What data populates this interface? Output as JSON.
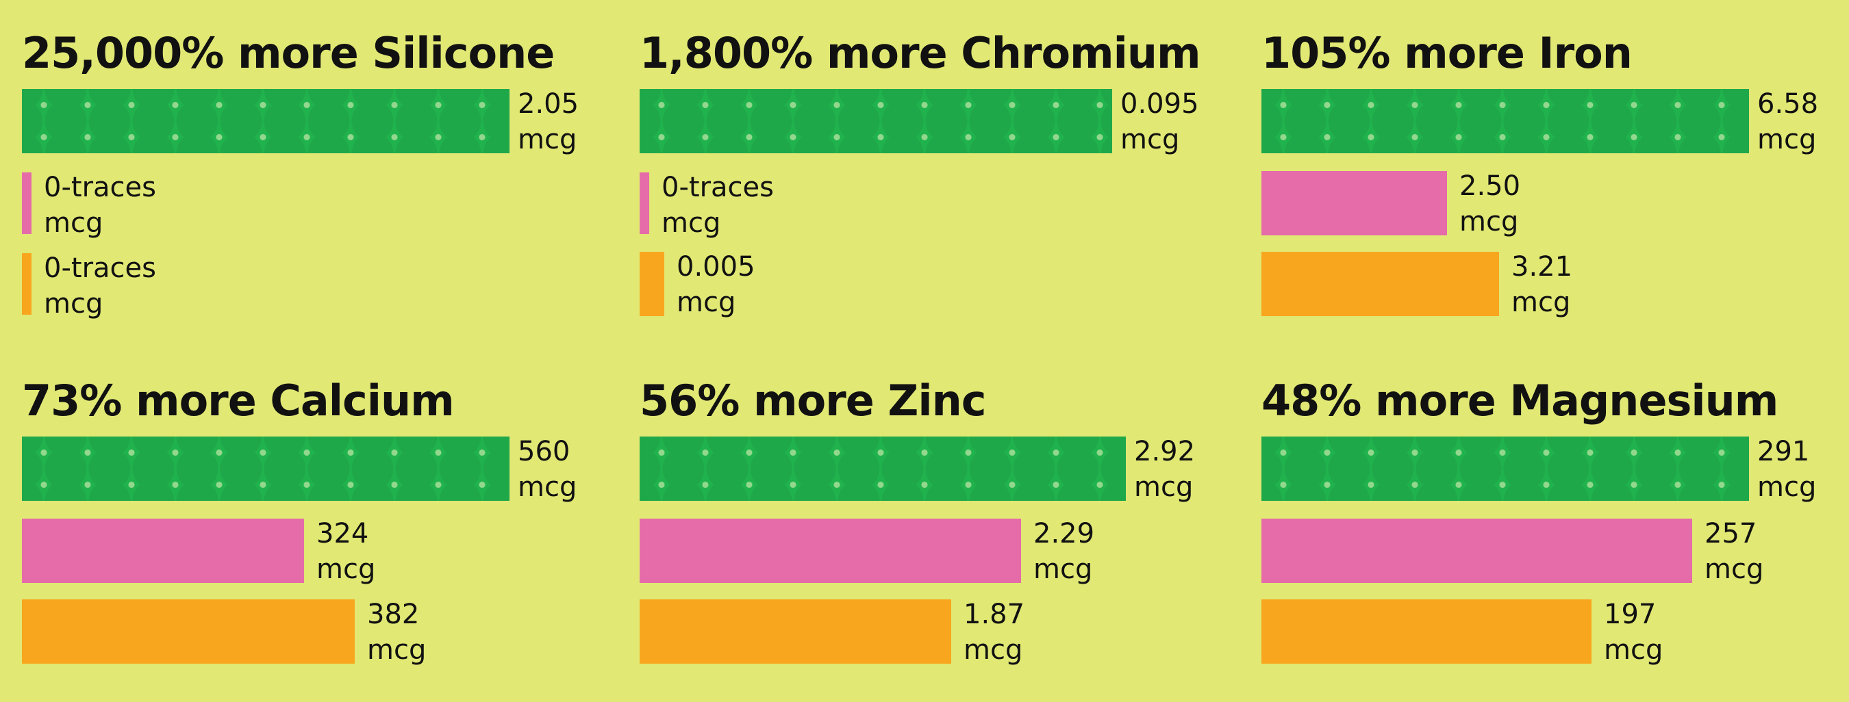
{
  "colors": {
    "background": "#e1e874",
    "series_1": "#20b24d",
    "series_2": "#e56ca9",
    "series_3": "#f9a61f"
  },
  "chart_data": [
    {
      "type": "bar",
      "title": "25,000% more Silicone",
      "unit": "mcg",
      "bars": [
        {
          "value": 2.05,
          "value_label": "2.05",
          "unit": "mcg",
          "color": "#20b24d",
          "pattern": true
        },
        {
          "value": 0,
          "value_label": "0-traces",
          "unit": "mcg",
          "color": "#e56ca9",
          "pattern": false
        },
        {
          "value": 0,
          "value_label": "0-traces",
          "unit": "mcg",
          "color": "#f9a61f",
          "pattern": false
        }
      ]
    },
    {
      "type": "bar",
      "title": "1,800% more Chromium",
      "unit": "mcg",
      "bars": [
        {
          "value": 0.095,
          "value_label": "0.095",
          "unit": "mcg",
          "color": "#20b24d",
          "pattern": true
        },
        {
          "value": 0,
          "value_label": "0-traces",
          "unit": "mcg",
          "color": "#e56ca9",
          "pattern": false
        },
        {
          "value": 0.005,
          "value_label": "0.005",
          "unit": "mcg",
          "color": "#f9a61f",
          "pattern": false
        }
      ]
    },
    {
      "type": "bar",
      "title": "105% more Iron",
      "unit": "mcg",
      "bars": [
        {
          "value": 6.58,
          "value_label": "6.58",
          "unit": "mcg",
          "color": "#20b24d",
          "pattern": true
        },
        {
          "value": 2.5,
          "value_label": "2.50",
          "unit": "mcg",
          "color": "#e56ca9",
          "pattern": false
        },
        {
          "value": 3.21,
          "value_label": "3.21",
          "unit": "mcg",
          "color": "#f9a61f",
          "pattern": false
        }
      ]
    },
    {
      "type": "bar",
      "title": "73% more Calcium",
      "unit": "mcg",
      "bars": [
        {
          "value": 560,
          "value_label": "560",
          "unit": "mcg",
          "color": "#20b24d",
          "pattern": true
        },
        {
          "value": 324,
          "value_label": "324",
          "unit": "mcg",
          "color": "#e56ca9",
          "pattern": false
        },
        {
          "value": 382,
          "value_label": "382",
          "unit": "mcg",
          "color": "#f9a61f",
          "pattern": false
        }
      ]
    },
    {
      "type": "bar",
      "title": "56% more Zinc",
      "unit": "mcg",
      "bars": [
        {
          "value": 2.92,
          "value_label": "2.92",
          "unit": "mcg",
          "color": "#20b24d",
          "pattern": true
        },
        {
          "value": 2.29,
          "value_label": "2.29",
          "unit": "mcg",
          "color": "#e56ca9",
          "pattern": false
        },
        {
          "value": 1.87,
          "value_label": "1.87",
          "unit": "mcg",
          "color": "#f9a61f",
          "pattern": false
        }
      ]
    },
    {
      "type": "bar",
      "title": "48% more Magnesium",
      "unit": "mcg",
      "bars": [
        {
          "value": 291,
          "value_label": "291",
          "unit": "mcg",
          "color": "#20b24d",
          "pattern": true
        },
        {
          "value": 257,
          "value_label": "257",
          "unit": "mcg",
          "color": "#e56ca9",
          "pattern": false
        },
        {
          "value": 197,
          "value_label": "197",
          "unit": "mcg",
          "color": "#f9a61f",
          "pattern": false
        }
      ]
    }
  ]
}
